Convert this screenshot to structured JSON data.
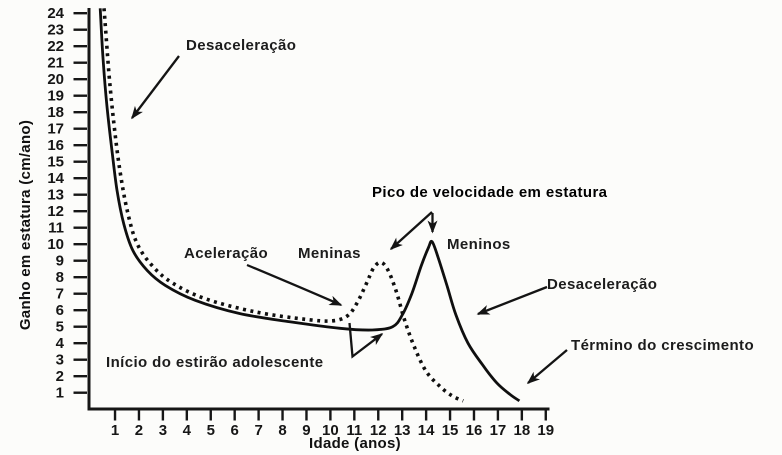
{
  "figure": {
    "background": "#fcfcfa",
    "ink": "#161616"
  },
  "chart_data": {
    "type": "line",
    "title": "",
    "xlabel": "Idade (anos)",
    "ylabel": "Ganho em estatura (cm/ano)",
    "xlim": [
      0,
      19.5
    ],
    "ylim": [
      0,
      24.5
    ],
    "x_ticks": [
      1,
      2,
      3,
      4,
      5,
      6,
      7,
      8,
      9,
      10,
      11,
      12,
      13,
      14,
      15,
      16,
      17,
      18,
      19
    ],
    "y_ticks": [
      1,
      2,
      3,
      4,
      5,
      6,
      7,
      8,
      9,
      10,
      11,
      12,
      13,
      14,
      15,
      16,
      17,
      18,
      19,
      20,
      21,
      22,
      23,
      24
    ],
    "grid": false,
    "legend_position": "labels-on-chart",
    "series": [
      {
        "name": "Meninas",
        "style": "dashed",
        "peak": {
          "age": 12.1,
          "value": 8.9
        },
        "points": [
          [
            0.54,
            24.3
          ],
          [
            0.75,
            20.3
          ],
          [
            0.96,
            17.2
          ],
          [
            1.2,
            14.5
          ],
          [
            1.5,
            12.1
          ],
          [
            1.9,
            10.1
          ],
          [
            2.55,
            8.7
          ],
          [
            3.4,
            7.65
          ],
          [
            4.76,
            6.7
          ],
          [
            6.85,
            5.9
          ],
          [
            8.95,
            5.45
          ],
          [
            10.05,
            5.35
          ],
          [
            10.7,
            5.65
          ],
          [
            11.1,
            6.4
          ],
          [
            11.5,
            7.6
          ],
          [
            11.8,
            8.55
          ],
          [
            12.1,
            8.9
          ],
          [
            12.4,
            8.45
          ],
          [
            12.75,
            7.15
          ],
          [
            13.1,
            5.4
          ],
          [
            13.5,
            3.8
          ],
          [
            14.0,
            2.3
          ],
          [
            14.6,
            1.35
          ],
          [
            15.1,
            0.8
          ],
          [
            15.55,
            0.5
          ]
        ]
      },
      {
        "name": "Meninos",
        "style": "solid",
        "peak": {
          "age": 14.25,
          "value": 10.15
        },
        "points": [
          [
            0.38,
            24.3
          ],
          [
            0.5,
            21.2
          ],
          [
            0.66,
            18.4
          ],
          [
            0.87,
            15.7
          ],
          [
            1.08,
            13.3
          ],
          [
            1.37,
            11.2
          ],
          [
            1.75,
            9.6
          ],
          [
            2.35,
            8.4
          ],
          [
            3.1,
            7.5
          ],
          [
            4.35,
            6.6
          ],
          [
            6.2,
            5.8
          ],
          [
            8.3,
            5.3
          ],
          [
            10.4,
            4.9
          ],
          [
            11.75,
            4.8
          ],
          [
            12.6,
            5.0
          ],
          [
            13.0,
            5.7
          ],
          [
            13.4,
            7.0
          ],
          [
            13.8,
            8.7
          ],
          [
            14.1,
            9.8
          ],
          [
            14.25,
            10.15
          ],
          [
            14.5,
            9.2
          ],
          [
            14.9,
            7.35
          ],
          [
            15.25,
            5.7
          ],
          [
            15.75,
            4.0
          ],
          [
            16.35,
            2.7
          ],
          [
            16.95,
            1.6
          ],
          [
            17.5,
            0.9
          ],
          [
            17.9,
            0.5
          ]
        ]
      }
    ],
    "annotations": [
      {
        "id": "desaceleracao-top",
        "text": "Desaceleração"
      },
      {
        "id": "aceleracao",
        "text": "Aceleração"
      },
      {
        "id": "meninas",
        "text": "Meninas"
      },
      {
        "id": "pico",
        "text": "Pico de velocidade em estatura"
      },
      {
        "id": "meninos",
        "text": "Meninos"
      },
      {
        "id": "desaceleracao-right",
        "text": "Desaceleração"
      },
      {
        "id": "termino",
        "text": "Término do crescimento"
      },
      {
        "id": "inicio-estirao",
        "text": "Início do estirão adolescente"
      }
    ]
  }
}
